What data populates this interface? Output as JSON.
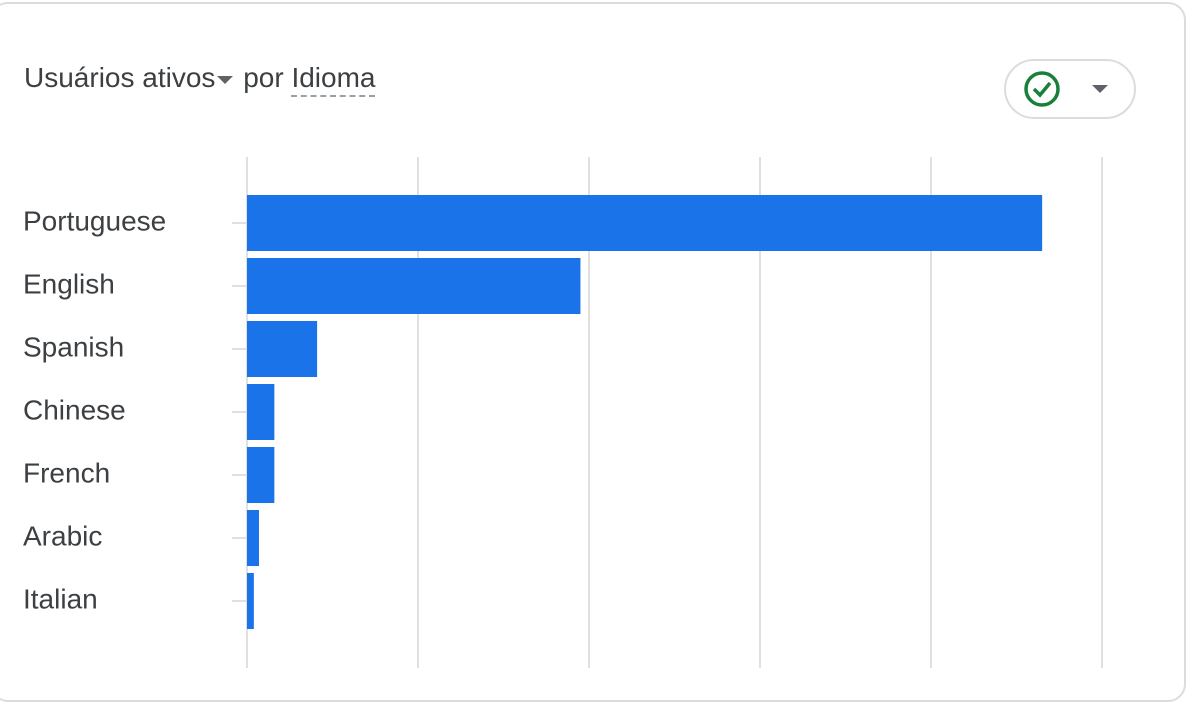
{
  "header": {
    "metric": "Usuários ativos",
    "by": "por",
    "dimension": "Idioma"
  },
  "chart_data": {
    "type": "bar",
    "orientation": "horizontal",
    "categories": [
      "Portuguese",
      "English",
      "Spanish",
      "Chinese",
      "French",
      "Arabic",
      "Italian"
    ],
    "values": [
      4.65,
      1.95,
      0.41,
      0.16,
      0.16,
      0.07,
      0.04
    ],
    "color": "#1a73e8",
    "xlim": [
      0,
      5
    ],
    "xticks": [
      0,
      1,
      2,
      3,
      4,
      5
    ],
    "grid": true
  }
}
